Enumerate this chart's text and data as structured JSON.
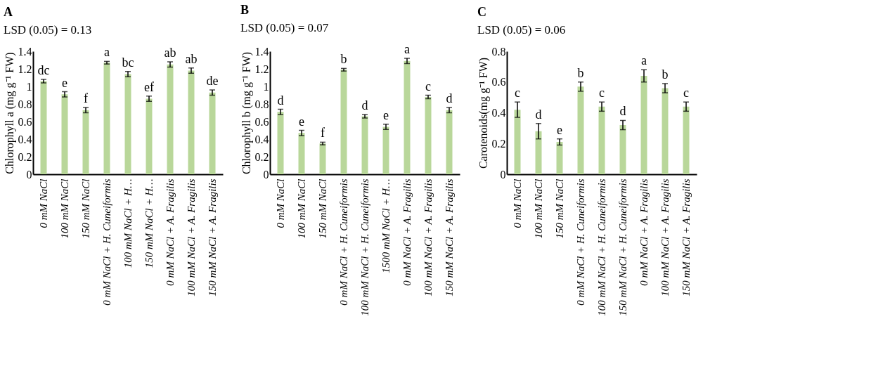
{
  "chart_data": [
    {
      "type": "bar",
      "title": "A",
      "subtitle": "LSD (0.05) = 0.13",
      "ylabel": "Chlorophyll a (mg g⁻¹ FW)",
      "categories": [
        "0 mM NaCl",
        "100 mM NaCl",
        "150 mM NaCl",
        "0 mM NaCl + H. Cuneiformis",
        "100 mM NaCl + H…",
        "150 mM NaCl + H…",
        "0 mM NaCl + A. Fragilis",
        "100 mM NaCl + A. Fragilis",
        "150 mM NaCl + A. Fragilis"
      ],
      "values": [
        1.06,
        0.91,
        0.73,
        1.27,
        1.14,
        0.86,
        1.25,
        1.18,
        0.93
      ],
      "errors": [
        0.02,
        0.03,
        0.03,
        0.015,
        0.03,
        0.03,
        0.03,
        0.03,
        0.03
      ],
      "value_labels": [
        "dc",
        "e",
        "f",
        "a",
        "bc",
        "ef",
        "ab",
        "ab",
        "de"
      ],
      "color": "#b9d79a",
      "ylim": [
        0,
        1.4
      ],
      "yticks": [
        0,
        0.2,
        0.4,
        0.6,
        0.8,
        {
          "value": 1,
          "label": "1"
        },
        1.2,
        1.4
      ],
      "grid": false
    },
    {
      "type": "bar",
      "title": "B",
      "subtitle": "LSD (0.05) = 0.07",
      "ylabel": "Chlorophyll b (mg g⁻¹ FW)",
      "categories": [
        "0 mM NaCl",
        "100 mM NaCl",
        "150 mM NaCl",
        "0 mM NaCl + H. Cuneiformis",
        "100 mM NaCl + H. Cuneiformis",
        "1500 mM NaCl + H…",
        "0 mM NaCl + A. Fragilis",
        "100 mM NaCl + A. Fragilis",
        "150 mM NaCl + A. Fragilis"
      ],
      "values": [
        0.71,
        0.47,
        0.35,
        1.19,
        0.66,
        0.54,
        1.29,
        0.88,
        0.73
      ],
      "errors": [
        0.03,
        0.03,
        0.015,
        0.015,
        0.02,
        0.03,
        0.03,
        0.02,
        0.03
      ],
      "value_labels": [
        "d",
        "e",
        "f",
        "b",
        "d",
        "e",
        "a",
        "c",
        "d"
      ],
      "color": "#b9d79a",
      "ylim": [
        0,
        1.4
      ],
      "yticks": [
        0,
        0.2,
        0.4,
        0.6,
        0.8,
        {
          "value": 1,
          "label": "1"
        },
        1.2,
        1.4
      ],
      "grid": false
    },
    {
      "type": "bar",
      "title": "C",
      "subtitle": "LSD (0.05) = 0.06",
      "ylabel": "Carotenoids(mg g⁻¹ FW)",
      "categories": [
        "0 mM NaCl",
        "100 mM NaCl",
        "150 mM NaCl",
        "0 mM NaCl + H. Cuneiformis",
        "100 mM NaCl + H. Cuneiformis",
        "150 mM NaCl + H. Cuneiformis",
        "0 mM NaCl + A. Fragilis",
        "100 mM NaCl + A. Fragilis",
        "150 mM NaCl + A. Fragilis"
      ],
      "values": [
        0.42,
        0.28,
        0.21,
        0.57,
        0.44,
        0.32,
        0.64,
        0.56,
        0.44
      ],
      "errors": [
        0.05,
        0.05,
        0.02,
        0.03,
        0.03,
        0.03,
        0.04,
        0.03,
        0.03
      ],
      "value_labels": [
        "c",
        "d",
        "e",
        "b",
        "c",
        "d",
        "a",
        "b",
        "c"
      ],
      "color": "#b9d79a",
      "ylim": [
        0,
        0.8
      ],
      "yticks": [
        0,
        0.2,
        0.4,
        0.6,
        0.8
      ],
      "grid": false
    }
  ]
}
